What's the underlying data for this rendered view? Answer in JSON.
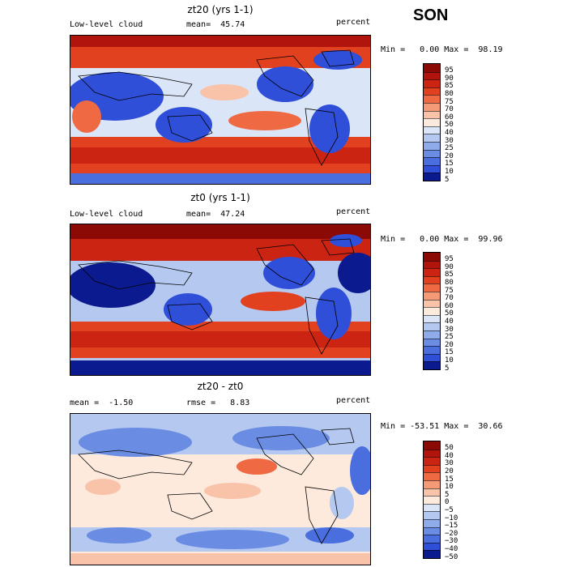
{
  "season": "SON",
  "palette": {
    "deep_blue": "#0a1f8f",
    "blue": "#2a52d8",
    "mid_blue": "#6f8fe5",
    "light_blue": "#c9d6f3",
    "white": "#f5f0ee",
    "peach": "#f6c7ad",
    "orange": "#ee6b42",
    "red": "#c4241b",
    "dark_red": "#8c0a05"
  },
  "panels": [
    {
      "title": "zt20 (yrs 1-1)",
      "left_label": "Low-level cloud",
      "mid_label": "mean=  45.74",
      "right_label": "percent",
      "stats": "Min =   0.00 Max =  98.19",
      "levels": [
        "95",
        "90",
        "85",
        "80",
        "75",
        "70",
        "60",
        "50",
        "40",
        "30",
        "25",
        "20",
        "15",
        "10",
        "5"
      ],
      "colors": [
        "#8c0a05",
        "#b0140d",
        "#cc2413",
        "#e2411f",
        "#ef6a43",
        "#f59a76",
        "#f9c3a9",
        "#fdeadd",
        "#dbe5f8",
        "#b5c9f0",
        "#8fabea",
        "#6a8ce3",
        "#4a6ede",
        "#2f4fd8",
        "#0c1a8f"
      ]
    },
    {
      "title": "zt0 (yrs 1-1)",
      "left_label": "Low-level cloud",
      "mid_label": "mean=  47.24",
      "right_label": "percent",
      "stats": "Min =   0.00 Max =  99.96",
      "levels": [
        "95",
        "90",
        "85",
        "80",
        "75",
        "70",
        "60",
        "50",
        "40",
        "30",
        "25",
        "20",
        "15",
        "10",
        "5"
      ],
      "colors": [
        "#8c0a05",
        "#b0140d",
        "#cc2413",
        "#e2411f",
        "#ef6a43",
        "#f59a76",
        "#f9c3a9",
        "#fdeadd",
        "#dbe5f8",
        "#b5c9f0",
        "#8fabea",
        "#6a8ce3",
        "#4a6ede",
        "#2f4fd8",
        "#0c1a8f"
      ]
    },
    {
      "title": "zt20 - zt0",
      "left_label": "mean =  -1.50",
      "mid_label": "rmse =   8.83",
      "right_label": "percent",
      "stats": "Min = -53.51 Max =  30.66",
      "levels": [
        "50",
        "40",
        "30",
        "20",
        "15",
        "10",
        "5",
        "0",
        "−5",
        "−10",
        "−15",
        "−20",
        "−30",
        "−40",
        "−50"
      ],
      "colors": [
        "#8c0a05",
        "#b0140d",
        "#cc2413",
        "#e2411f",
        "#ef6a43",
        "#f59a76",
        "#f9c3a9",
        "#fdeadd",
        "#dbe5f8",
        "#b5c9f0",
        "#8fabea",
        "#6a8ce3",
        "#4a6ede",
        "#2f4fd8",
        "#0c1a8f"
      ]
    }
  ]
}
